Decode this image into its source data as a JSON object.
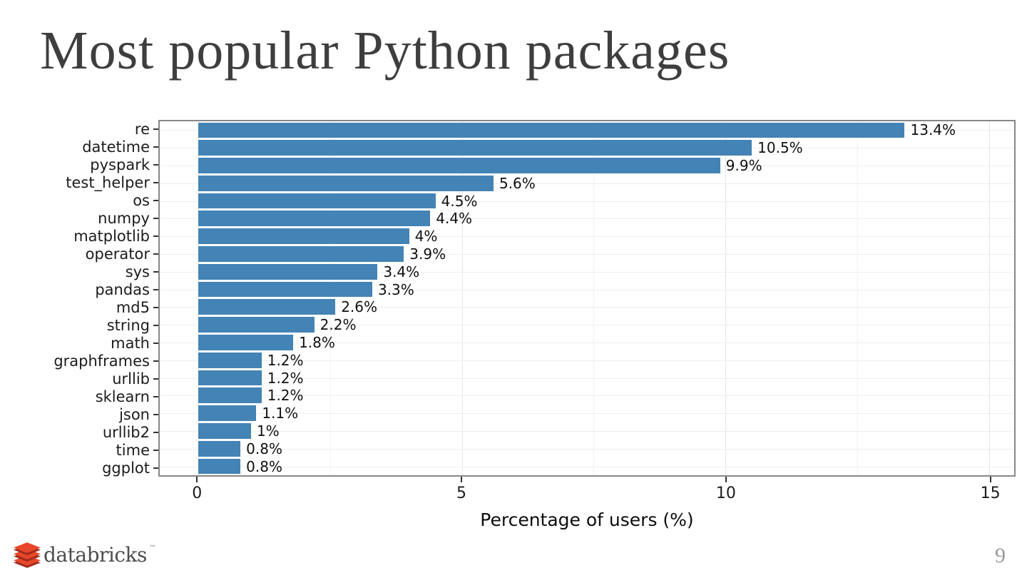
{
  "slide": {
    "title": "Most popular Python packages",
    "page_number": "9",
    "footer_brand": "databricks",
    "footer_brand_tm": "™"
  },
  "chart_data": {
    "type": "bar",
    "orientation": "horizontal",
    "title": "Most popular Python packages",
    "xlabel": "Percentage of users (%)",
    "ylabel": "",
    "categories": [
      "re",
      "datetime",
      "pyspark",
      "test_helper",
      "os",
      "numpy",
      "matplotlib",
      "operator",
      "sys",
      "pandas",
      "md5",
      "string",
      "math",
      "graphframes",
      "urllib",
      "sklearn",
      "json",
      "urllib2",
      "time",
      "ggplot"
    ],
    "values": [
      13.4,
      10.5,
      9.9,
      5.6,
      4.5,
      4.4,
      4,
      3.9,
      3.4,
      3.3,
      2.6,
      2.2,
      1.8,
      1.2,
      1.2,
      1.2,
      1.1,
      1,
      0.8,
      0.8
    ],
    "value_labels": [
      "13.4%",
      "10.5%",
      "9.9%",
      "5.6%",
      "4.5%",
      "4.4%",
      "4%",
      "3.9%",
      "3.4%",
      "3.3%",
      "2.6%",
      "2.2%",
      "1.8%",
      "1.2%",
      "1.2%",
      "1.2%",
      "1.1%",
      "1%",
      "0.8%",
      "0.8%"
    ],
    "x_ticks": [
      0,
      5,
      10,
      15
    ],
    "x_tick_labels": [
      "0",
      "5",
      "10",
      "15"
    ],
    "xlim": [
      -0.75,
      15.5
    ],
    "grid": true,
    "legend": false,
    "bar_color": "#4383b5",
    "panel_border_color": "#878787"
  },
  "logo_colors": {
    "bright": "#e8462a",
    "dark": "#9f2c1f"
  }
}
